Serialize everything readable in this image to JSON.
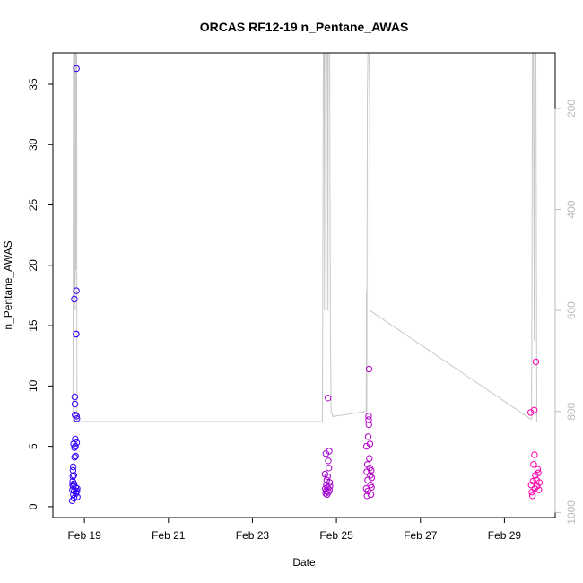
{
  "chart_data": {
    "type": "scatter",
    "title": "ORCAS RF12-19 n_Pentane_AWAS",
    "xlabel": "Date",
    "ylabel": "n_Pentane_AWAS",
    "xlim": [
      "2016-02-18T06:00",
      "2016-03-01T05:00"
    ],
    "ylim": [
      -0.9,
      37.6
    ],
    "x_ticks": [
      {
        "date": "2016-02-19T00:00",
        "label": "Feb 19"
      },
      {
        "date": "2016-02-21T00:00",
        "label": "Feb 21"
      },
      {
        "date": "2016-02-23T00:00",
        "label": "Feb 23"
      },
      {
        "date": "2016-02-25T00:00",
        "label": "Feb 25"
      },
      {
        "date": "2016-02-27T00:00",
        "label": "Feb 27"
      },
      {
        "date": "2016-02-29T00:00",
        "label": "Feb 29"
      }
    ],
    "y_ticks": [
      0,
      5,
      10,
      15,
      20,
      25,
      30,
      35
    ],
    "y2_axis": {
      "ticks": [
        200,
        400,
        600,
        800,
        1000
      ],
      "reversed": true,
      "color": "#bbbbbb",
      "range": [
        90,
        1010
      ]
    },
    "grid": false,
    "legend": "none",
    "point_color_gradient": [
      "#3300ff",
      "#ff00aa"
    ],
    "series": [
      {
        "type": "scatter",
        "points": [
          [
            "2016-02-18T17:00",
            0.5
          ],
          [
            "2016-02-18T17:10",
            1.4
          ],
          [
            "2016-02-18T17:15",
            1.8
          ],
          [
            "2016-02-18T17:20",
            2.1
          ],
          [
            "2016-02-18T17:25",
            2.5
          ],
          [
            "2016-02-18T17:30",
            3.0
          ],
          [
            "2016-02-18T17:35",
            3.3
          ],
          [
            "2016-02-18T17:40",
            1.0
          ],
          [
            "2016-02-18T17:45",
            1.7
          ],
          [
            "2016-02-18T17:50",
            5.2
          ],
          [
            "2016-02-18T17:55",
            2.6
          ],
          [
            "2016-02-18T18:00",
            1.9
          ],
          [
            "2016-02-18T18:05",
            0.7
          ],
          [
            "2016-02-18T18:10",
            1.3
          ],
          [
            "2016-02-18T18:15",
            17.2
          ],
          [
            "2016-02-18T18:20",
            4.9
          ],
          [
            "2016-02-18T18:25",
            4.1
          ],
          [
            "2016-02-18T18:30",
            9.1
          ],
          [
            "2016-02-18T18:35",
            8.5
          ],
          [
            "2016-02-18T18:40",
            7.6
          ],
          [
            "2016-02-18T18:45",
            5.6
          ],
          [
            "2016-02-18T18:50",
            5.0
          ],
          [
            "2016-02-18T18:55",
            4.2
          ],
          [
            "2016-02-18T19:00",
            1.6
          ],
          [
            "2016-02-18T19:05",
            1.2
          ],
          [
            "2016-02-18T19:10",
            1.1
          ],
          [
            "2016-02-18T19:15",
            14.3
          ],
          [
            "2016-02-18T19:20",
            14.3
          ],
          [
            "2016-02-18T19:25",
            17.9
          ],
          [
            "2016-02-18T19:30",
            7.5
          ],
          [
            "2016-02-18T19:35",
            5.3
          ],
          [
            "2016-02-18T19:40",
            7.3
          ],
          [
            "2016-02-18T19:45",
            1.3
          ],
          [
            "2016-02-18T19:50",
            1.5
          ],
          [
            "2016-02-18T19:55",
            0.8
          ],
          [
            "2016-02-18T19:25",
            36.3
          ],
          [
            "2016-02-24T17:30",
            2.7
          ],
          [
            "2016-02-24T17:40",
            1.5
          ],
          [
            "2016-02-24T17:50",
            1.1
          ],
          [
            "2016-02-24T18:00",
            4.4
          ],
          [
            "2016-02-24T18:10",
            1.3
          ],
          [
            "2016-02-24T18:20",
            1.8
          ],
          [
            "2016-02-24T18:30",
            2.2
          ],
          [
            "2016-02-24T18:40",
            1.0
          ],
          [
            "2016-02-24T18:50",
            1.6
          ],
          [
            "2016-02-24T19:00",
            2.5
          ],
          [
            "2016-02-24T19:10",
            9.0
          ],
          [
            "2016-02-24T19:20",
            3.8
          ],
          [
            "2016-02-24T19:30",
            1.2
          ],
          [
            "2016-02-24T19:40",
            3.2
          ],
          [
            "2016-02-24T19:50",
            4.6
          ],
          [
            "2016-02-24T20:00",
            1.4
          ],
          [
            "2016-02-24T20:10",
            2.0
          ],
          [
            "2016-02-24T20:20",
            1.7
          ],
          [
            "2016-02-25T17:00",
            1.5
          ],
          [
            "2016-02-25T17:10",
            5.0
          ],
          [
            "2016-02-25T17:20",
            2.9
          ],
          [
            "2016-02-25T17:30",
            0.9
          ],
          [
            "2016-02-25T17:40",
            3.5
          ],
          [
            "2016-02-25T17:50",
            2.2
          ],
          [
            "2016-02-25T18:00",
            1.3
          ],
          [
            "2016-02-25T18:10",
            5.8
          ],
          [
            "2016-02-25T18:20",
            7.5
          ],
          [
            "2016-02-25T18:25",
            7.2
          ],
          [
            "2016-02-25T18:30",
            6.8
          ],
          [
            "2016-02-25T18:40",
            11.4
          ],
          [
            "2016-02-25T18:50",
            4.0
          ],
          [
            "2016-02-25T19:00",
            3.2
          ],
          [
            "2016-02-25T19:10",
            5.2
          ],
          [
            "2016-02-25T19:20",
            2.6
          ],
          [
            "2016-02-25T19:30",
            1.8
          ],
          [
            "2016-02-25T19:40",
            1.0
          ],
          [
            "2016-02-25T19:50",
            3.0
          ],
          [
            "2016-02-25T20:00",
            1.6
          ],
          [
            "2016-02-25T20:10",
            2.4
          ],
          [
            "2016-02-29T15:00",
            7.8
          ],
          [
            "2016-02-29T15:20",
            1.8
          ],
          [
            "2016-02-29T15:40",
            1.2
          ],
          [
            "2016-02-29T16:00",
            0.9
          ],
          [
            "2016-02-29T16:20",
            2.1
          ],
          [
            "2016-02-29T16:40",
            3.5
          ],
          [
            "2016-02-29T17:00",
            8.0
          ],
          [
            "2016-02-29T17:10",
            4.3
          ],
          [
            "2016-02-29T17:20",
            1.5
          ],
          [
            "2016-02-29T17:40",
            2.6
          ],
          [
            "2016-02-29T18:00",
            12.0
          ],
          [
            "2016-02-29T18:20",
            2.2
          ],
          [
            "2016-02-29T18:40",
            1.7
          ],
          [
            "2016-02-29T19:00",
            3.1
          ],
          [
            "2016-02-29T19:20",
            2.8
          ],
          [
            "2016-02-29T19:40",
            1.4
          ],
          [
            "2016-02-29T20:00",
            2.0
          ]
        ]
      },
      {
        "type": "line",
        "axis": "right",
        "color": "#c8c8c8",
        "points": [
          [
            "2016-02-18T17:00",
            820
          ],
          [
            "2016-02-18T17:30",
            820
          ],
          [
            "2016-02-18T17:45",
            90
          ],
          [
            "2016-02-18T18:00",
            90
          ],
          [
            "2016-02-18T18:05",
            580
          ],
          [
            "2016-02-18T18:10",
            90
          ],
          [
            "2016-02-18T18:20",
            90
          ],
          [
            "2016-02-18T18:25",
            560
          ],
          [
            "2016-02-18T18:30",
            90
          ],
          [
            "2016-02-18T18:40",
            90
          ],
          [
            "2016-02-18T18:45",
            600
          ],
          [
            "2016-02-18T18:50",
            90
          ],
          [
            "2016-02-18T19:00",
            90
          ],
          [
            "2016-02-18T19:05",
            520
          ],
          [
            "2016-02-18T19:10",
            90
          ],
          [
            "2016-02-18T19:35",
            90
          ],
          [
            "2016-02-18T19:45",
            820
          ],
          [
            "2016-02-18T20:00",
            820
          ],
          [
            "2016-02-24T16:00",
            820
          ],
          [
            "2016-02-24T16:30",
            90
          ],
          [
            "2016-02-24T17:00",
            90
          ],
          [
            "2016-02-24T17:10",
            600
          ],
          [
            "2016-02-24T17:20",
            90
          ],
          [
            "2016-02-24T18:00",
            90
          ],
          [
            "2016-02-24T18:10",
            600
          ],
          [
            "2016-02-24T18:20",
            90
          ],
          [
            "2016-02-24T19:00",
            90
          ],
          [
            "2016-02-24T19:10",
            600
          ],
          [
            "2016-02-24T19:20",
            90
          ],
          [
            "2016-02-24T20:10",
            90
          ],
          [
            "2016-02-24T20:30",
            620
          ],
          [
            "2016-02-24T21:00",
            800
          ],
          [
            "2016-02-24T22:00",
            810
          ],
          [
            "2016-02-25T17:00",
            800
          ],
          [
            "2016-02-25T17:10",
            560
          ],
          [
            "2016-02-25T17:20",
            800
          ],
          [
            "2016-02-25T17:40",
            170
          ],
          [
            "2016-02-25T18:00",
            90
          ],
          [
            "2016-02-25T18:20",
            90
          ],
          [
            "2016-02-25T18:40",
            90
          ],
          [
            "2016-02-25T19:00",
            200
          ],
          [
            "2016-02-25T19:10",
            600
          ],
          [
            "2016-02-29T15:00",
            815
          ],
          [
            "2016-02-29T15:30",
            815
          ],
          [
            "2016-02-29T16:00",
            90
          ],
          [
            "2016-02-29T16:30",
            90
          ],
          [
            "2016-02-29T17:00",
            660
          ],
          [
            "2016-02-29T17:20",
            90
          ],
          [
            "2016-02-29T18:00",
            90
          ],
          [
            "2016-02-29T18:30",
            820
          ],
          [
            "2016-02-29T19:00",
            820
          ]
        ]
      }
    ]
  }
}
